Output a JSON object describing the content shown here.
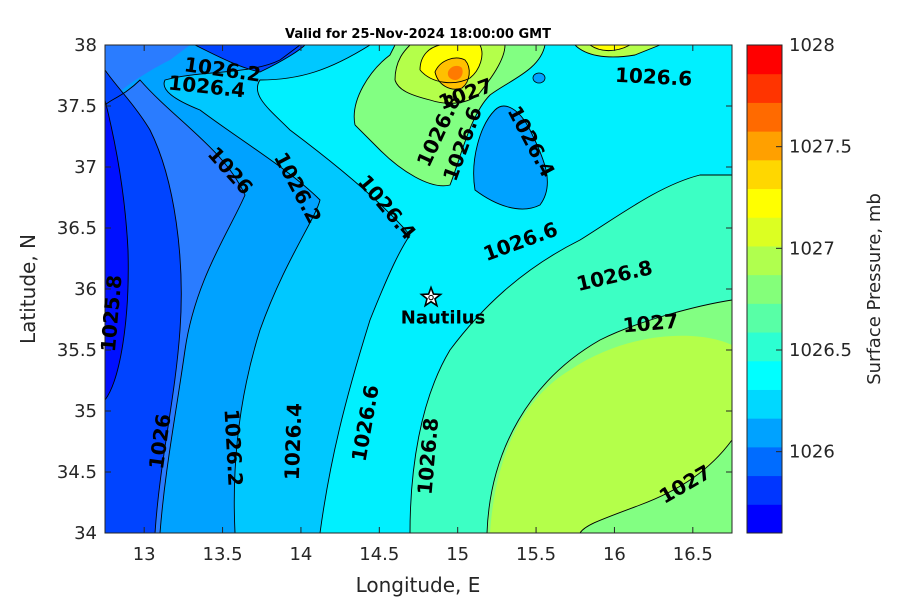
{
  "chart_data": {
    "type": "heatmap",
    "title": "Valid for 25-Nov-2024 18:00:00 GMT",
    "xlabel": "Longitude, E",
    "ylabel": "Latitude, N",
    "xlim": [
      12.75,
      16.75
    ],
    "ylim": [
      34,
      38
    ],
    "x_ticks": [
      "13",
      "13.5",
      "14",
      "14.5",
      "15",
      "15.5",
      "16",
      "16.5"
    ],
    "y_ticks": [
      "34",
      "34.5",
      "35",
      "35.5",
      "36",
      "36.5",
      "37",
      "37.5",
      "38"
    ],
    "colorbar": {
      "label": "Surface Pressure, mb",
      "range": [
        1025.6,
        1028
      ],
      "step": 0.1,
      "tick_labels": [
        "1026",
        "1026.5",
        "1027",
        "1027.5",
        "1028"
      ],
      "colors": [
        "#0000ff",
        "#0036ff",
        "#006cff",
        "#00a2ff",
        "#00d8ff",
        "#00ffff",
        "#2cffd2",
        "#58ffa6",
        "#84ff7a",
        "#b0ff4e",
        "#dcff22",
        "#ffff00",
        "#ffd700",
        "#ffa000",
        "#ff6a00",
        "#ff3400",
        "#ff0000"
      ]
    },
    "grid": false,
    "legend": "colorbar right",
    "contour_labels": [
      {
        "text": "1026.2",
        "lon": 13.5,
        "lat": 37.8,
        "angle": 8
      },
      {
        "text": "1026.4",
        "lon": 13.4,
        "lat": 37.66,
        "angle": 6
      },
      {
        "text": "1026",
        "lon": 13.55,
        "lat": 36.97,
        "angle": 48
      },
      {
        "text": "1026.2",
        "lon": 13.98,
        "lat": 36.83,
        "angle": 62
      },
      {
        "text": "1026.4",
        "lon": 14.55,
        "lat": 36.67,
        "angle": 50
      },
      {
        "text": "1027",
        "lon": 15.05,
        "lat": 37.6,
        "angle": -20
      },
      {
        "text": "1026.8",
        "lon": 14.88,
        "lat": 37.3,
        "angle": -65
      },
      {
        "text": "1026.6",
        "lon": 15.03,
        "lat": 37.19,
        "angle": -70
      },
      {
        "text": "1026.4",
        "lon": 15.47,
        "lat": 37.21,
        "angle": 62
      },
      {
        "text": "1026.6",
        "lon": 16.25,
        "lat": 37.74,
        "angle": 3
      },
      {
        "text": "1026.6",
        "lon": 15.4,
        "lat": 36.39,
        "angle": -20
      },
      {
        "text": "1026.8",
        "lon": 16.0,
        "lat": 36.11,
        "angle": -13
      },
      {
        "text": "1027",
        "lon": 16.23,
        "lat": 35.72,
        "angle": -5
      },
      {
        "text": "1027",
        "lon": 16.45,
        "lat": 34.4,
        "angle": -30
      },
      {
        "text": "1025.8",
        "lon": 12.79,
        "lat": 35.8,
        "angle": -85
      },
      {
        "text": "1026",
        "lon": 13.1,
        "lat": 34.75,
        "angle": -82
      },
      {
        "text": "1026.2",
        "lon": 13.57,
        "lat": 34.7,
        "angle": 87
      },
      {
        "text": "1026.4",
        "lon": 13.95,
        "lat": 34.75,
        "angle": -88
      },
      {
        "text": "1026.6",
        "lon": 14.41,
        "lat": 34.9,
        "angle": -80
      },
      {
        "text": "1026.8",
        "lon": 14.81,
        "lat": 34.63,
        "angle": -85
      }
    ],
    "marker": {
      "label": "Nautilus",
      "lon": 14.83,
      "lat": 35.93
    }
  }
}
